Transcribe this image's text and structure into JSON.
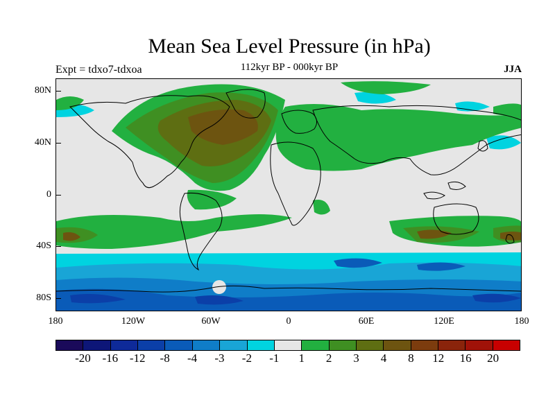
{
  "title": "Mean Sea Level Pressure (in hPa)",
  "subtitle": "112kyr BP - 000kyr BP",
  "left_label": "Expt = tdxo7-tdxoa",
  "right_label": "JJA",
  "y_ticks": [
    "80N",
    "40N",
    "0",
    "40S",
    "80S"
  ],
  "x_ticks": [
    "180",
    "120W",
    "60W",
    "0",
    "60E",
    "120E",
    "180"
  ],
  "colorbar": {
    "colors": [
      "#1a0a5a",
      "#0d1678",
      "#0e2a99",
      "#0b3fa8",
      "#0a5bb8",
      "#0f7dc8",
      "#19a5d6",
      "#00d3e0",
      "#e6e6e6",
      "#22b040",
      "#3f8f22",
      "#5e6e12",
      "#6d5410",
      "#7c3c0e",
      "#8a240b",
      "#a01208",
      "#c80000"
    ],
    "labels": [
      "-20",
      "-16",
      "-12",
      "-8",
      "-4",
      "-3",
      "-2",
      "-1",
      "1",
      "2",
      "3",
      "4",
      "8",
      "12",
      "16",
      "20"
    ]
  }
}
